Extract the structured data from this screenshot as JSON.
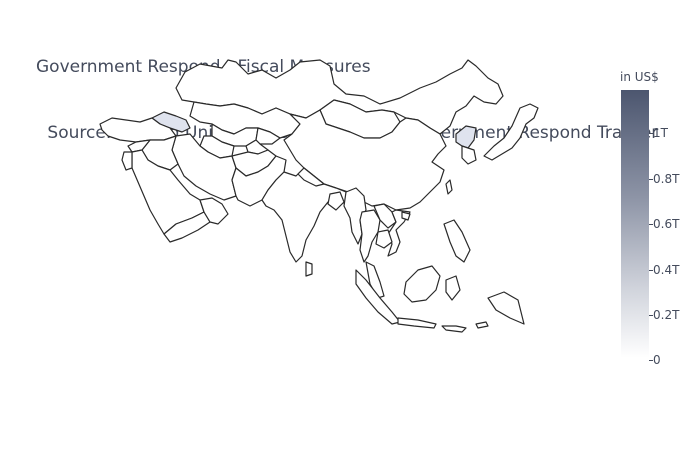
{
  "title": {
    "line1": "Government Respond - Fiscal Measures",
    "line2": " Source:  Oxford University CORONAVIRUS Government Respond Tracker"
  },
  "colorbar": {
    "title": "in US$",
    "ticks": [
      "1T",
      "0.8T",
      "0.6T",
      "0.4T",
      "0.2T",
      "0"
    ],
    "colors": {
      "max": "#4c566f",
      "mid": "#8d94a6",
      "min": "#ffffff"
    }
  },
  "map": {
    "region": "asia",
    "highlighted": [
      "Georgia/Caucasus",
      "North Korea"
    ],
    "highlight_color": "#dfe3ee"
  }
}
